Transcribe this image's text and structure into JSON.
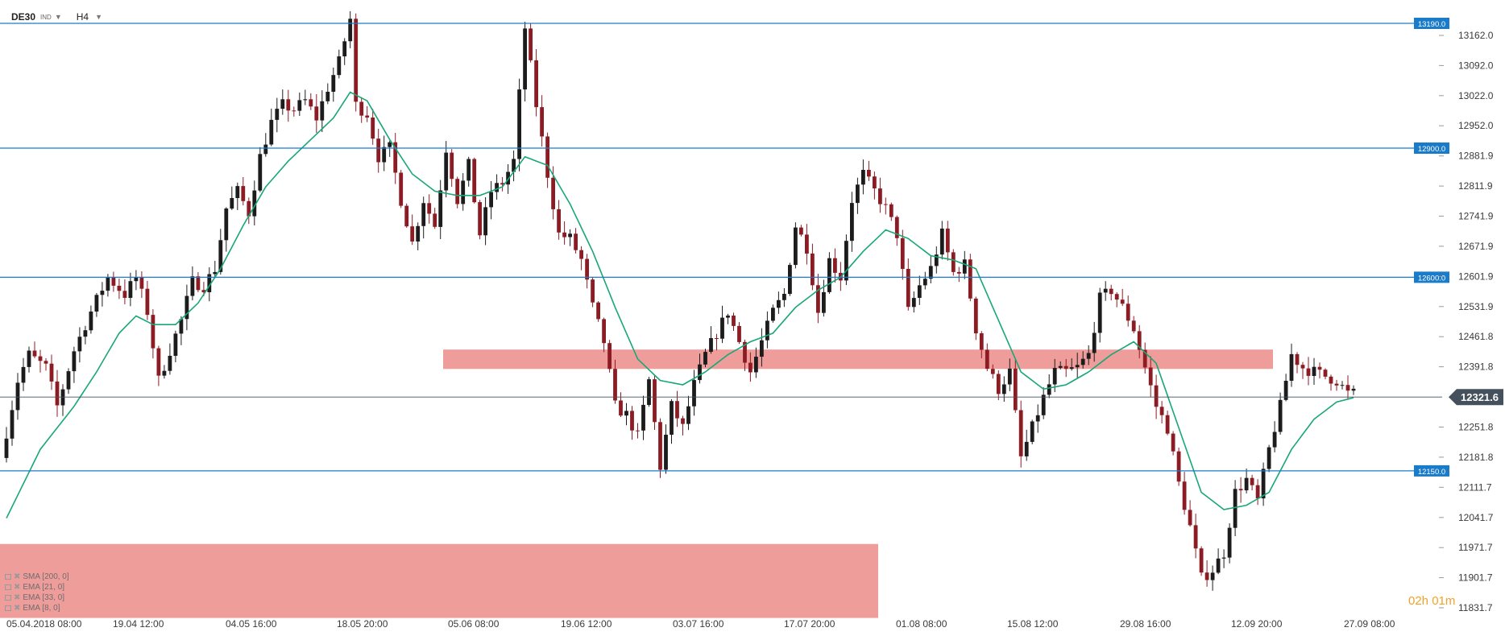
{
  "toolbar": {
    "symbol": "DE30",
    "instrument_class": "IND",
    "timeframe": "H4"
  },
  "indicators": [
    {
      "label": "SMA [200, 0]"
    },
    {
      "label": "EMA [21, 0]"
    },
    {
      "label": "EMA [33, 0]"
    },
    {
      "label": "EMA [8, 0]"
    }
  ],
  "countdown": "02h 01m",
  "colors": {
    "bull": "#1c1c1c",
    "bear": "#8c1c24",
    "level": "#1a7bc9",
    "ema": "#17a778",
    "zone": "#ef9d9b",
    "current": "#44505c"
  },
  "chart_data": {
    "type": "candlestick",
    "ylim": [
      11800,
      13215
    ],
    "y_ticks": [
      13162.0,
      13092.0,
      13022.0,
      12952.0,
      12881.9,
      12811.9,
      12741.9,
      12671.9,
      12601.9,
      12531.9,
      12461.8,
      12391.8,
      12321.6,
      12251.8,
      12181.8,
      12111.7,
      12041.7,
      11971.7,
      11901.7,
      11831.7
    ],
    "x_ticks": [
      "05.04.2018 08:00",
      "19.04 12:00",
      "04.05 16:00",
      "18.05 20:00",
      "05.06 08:00",
      "19.06 12:00",
      "03.07 16:00",
      "17.07 20:00",
      "01.08 08:00",
      "15.08 12:00",
      "29.08 16:00",
      "12.09 20:00",
      "27.09 08:00"
    ],
    "levels": [
      13190.0,
      12900.0,
      12600.0,
      12150.0
    ],
    "current_price": 12321.6,
    "zones": [
      {
        "from_index": 0.55,
        "to_index": 1.58,
        "low": 12387,
        "high": 12432
      },
      {
        "from_index": 0.0,
        "to_index": 1.09,
        "low": 11808,
        "high": 11980
      }
    ],
    "anchors": [
      [
        0,
        12180
      ],
      [
        3,
        12360
      ],
      [
        5,
        12420
      ],
      [
        8,
        12390
      ],
      [
        10,
        12300
      ],
      [
        13,
        12430
      ],
      [
        16,
        12520
      ],
      [
        19,
        12600
      ],
      [
        22,
        12560
      ],
      [
        24,
        12600
      ],
      [
        26,
        12520
      ],
      [
        28,
        12360
      ],
      [
        30,
        12430
      ],
      [
        32,
        12500
      ],
      [
        34,
        12590
      ],
      [
        36,
        12580
      ],
      [
        38,
        12620
      ],
      [
        40,
        12760
      ],
      [
        42,
        12800
      ],
      [
        44,
        12750
      ],
      [
        46,
        12880
      ],
      [
        48,
        12960
      ],
      [
        50,
        13000
      ],
      [
        52,
        12990
      ],
      [
        54,
        13010
      ],
      [
        56,
        12970
      ],
      [
        58,
        13040
      ],
      [
        60,
        13100
      ],
      [
        62,
        13200
      ],
      [
        63,
        13000
      ],
      [
        65,
        12980
      ],
      [
        67,
        12880
      ],
      [
        69,
        12900
      ],
      [
        71,
        12780
      ],
      [
        73,
        12680
      ],
      [
        75,
        12780
      ],
      [
        77,
        12720
      ],
      [
        79,
        12900
      ],
      [
        81,
        12780
      ],
      [
        83,
        12860
      ],
      [
        85,
        12700
      ],
      [
        87,
        12800
      ],
      [
        89,
        12820
      ],
      [
        91,
        12870
      ],
      [
        93,
        13180
      ],
      [
        95,
        13000
      ],
      [
        97,
        12840
      ],
      [
        99,
        12700
      ],
      [
        101,
        12690
      ],
      [
        103,
        12640
      ],
      [
        105,
        12530
      ],
      [
        107,
        12450
      ],
      [
        109,
        12300
      ],
      [
        111,
        12280
      ],
      [
        113,
        12230
      ],
      [
        115,
        12360
      ],
      [
        117,
        12160
      ],
      [
        119,
        12300
      ],
      [
        121,
        12250
      ],
      [
        123,
        12350
      ],
      [
        125,
        12420
      ],
      [
        127,
        12470
      ],
      [
        129,
        12520
      ],
      [
        131,
        12450
      ],
      [
        133,
        12380
      ],
      [
        135,
        12450
      ],
      [
        137,
        12520
      ],
      [
        139,
        12560
      ],
      [
        141,
        12720
      ],
      [
        143,
        12670
      ],
      [
        145,
        12520
      ],
      [
        147,
        12640
      ],
      [
        149,
        12600
      ],
      [
        151,
        12780
      ],
      [
        153,
        12840
      ],
      [
        155,
        12800
      ],
      [
        157,
        12760
      ],
      [
        159,
        12700
      ],
      [
        161,
        12520
      ],
      [
        163,
        12580
      ],
      [
        165,
        12620
      ],
      [
        167,
        12700
      ],
      [
        169,
        12610
      ],
      [
        171,
        12630
      ],
      [
        173,
        12480
      ],
      [
        175,
        12390
      ],
      [
        177,
        12340
      ],
      [
        179,
        12380
      ],
      [
        181,
        12180
      ],
      [
        183,
        12250
      ],
      [
        185,
        12320
      ],
      [
        187,
        12380
      ],
      [
        189,
        12380
      ],
      [
        191,
        12390
      ],
      [
        193,
        12420
      ],
      [
        195,
        12550
      ],
      [
        197,
        12570
      ],
      [
        199,
        12530
      ],
      [
        201,
        12480
      ],
      [
        203,
        12390
      ],
      [
        205,
        12300
      ],
      [
        207,
        12250
      ],
      [
        209,
        12120
      ],
      [
        211,
        12020
      ],
      [
        213,
        11900
      ],
      [
        215,
        11920
      ],
      [
        217,
        11960
      ],
      [
        219,
        12100
      ],
      [
        221,
        12130
      ],
      [
        223,
        12080
      ],
      [
        225,
        12200
      ],
      [
        227,
        12300
      ],
      [
        229,
        12420
      ],
      [
        231,
        12390
      ],
      [
        233,
        12380
      ],
      [
        235,
        12370
      ],
      [
        237,
        12360
      ],
      [
        239,
        12330
      ]
    ],
    "ema_anchors": [
      [
        0,
        12040
      ],
      [
        6,
        12200
      ],
      [
        12,
        12300
      ],
      [
        16,
        12380
      ],
      [
        20,
        12470
      ],
      [
        23,
        12510
      ],
      [
        26,
        12490
      ],
      [
        30,
        12490
      ],
      [
        34,
        12540
      ],
      [
        38,
        12620
      ],
      [
        42,
        12720
      ],
      [
        46,
        12810
      ],
      [
        50,
        12870
      ],
      [
        54,
        12920
      ],
      [
        58,
        12970
      ],
      [
        61,
        13030
      ],
      [
        64,
        13010
      ],
      [
        68,
        12920
      ],
      [
        72,
        12840
      ],
      [
        76,
        12800
      ],
      [
        80,
        12790
      ],
      [
        84,
        12790
      ],
      [
        88,
        12810
      ],
      [
        92,
        12880
      ],
      [
        96,
        12860
      ],
      [
        100,
        12770
      ],
      [
        104,
        12660
      ],
      [
        108,
        12530
      ],
      [
        112,
        12410
      ],
      [
        116,
        12360
      ],
      [
        120,
        12350
      ],
      [
        124,
        12380
      ],
      [
        128,
        12420
      ],
      [
        132,
        12450
      ],
      [
        136,
        12470
      ],
      [
        140,
        12530
      ],
      [
        144,
        12570
      ],
      [
        148,
        12600
      ],
      [
        152,
        12660
      ],
      [
        156,
        12710
      ],
      [
        160,
        12690
      ],
      [
        164,
        12650
      ],
      [
        168,
        12640
      ],
      [
        172,
        12620
      ],
      [
        176,
        12500
      ],
      [
        180,
        12380
      ],
      [
        184,
        12340
      ],
      [
        188,
        12350
      ],
      [
        192,
        12380
      ],
      [
        196,
        12420
      ],
      [
        200,
        12450
      ],
      [
        204,
        12400
      ],
      [
        208,
        12250
      ],
      [
        212,
        12100
      ],
      [
        216,
        12060
      ],
      [
        220,
        12070
      ],
      [
        224,
        12100
      ],
      [
        228,
        12200
      ],
      [
        232,
        12270
      ],
      [
        236,
        12310
      ],
      [
        239,
        12320
      ]
    ]
  }
}
